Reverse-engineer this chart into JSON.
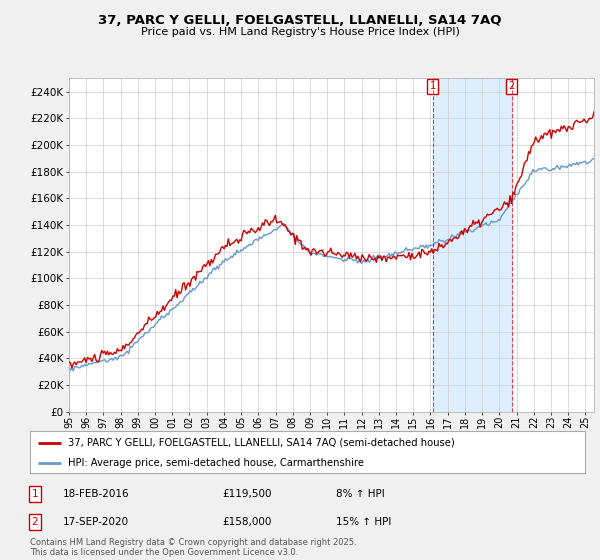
{
  "title_line1": "37, PARC Y GELLI, FOELGASTELL, LLANELLI, SA14 7AQ",
  "title_line2": "Price paid vs. HM Land Registry's House Price Index (HPI)",
  "ylim": [
    0,
    250000
  ],
  "yticks": [
    0,
    20000,
    40000,
    60000,
    80000,
    100000,
    120000,
    140000,
    160000,
    180000,
    200000,
    220000,
    240000
  ],
  "ytick_labels": [
    "£0",
    "£20K",
    "£40K",
    "£60K",
    "£80K",
    "£100K",
    "£120K",
    "£140K",
    "£160K",
    "£180K",
    "£200K",
    "£220K",
    "£240K"
  ],
  "line1_color": "#cc0000",
  "line2_color": "#6699cc",
  "shade_color": "#ddeeff",
  "vline_color": "#cc0000",
  "background_color": "#f0f0f0",
  "plot_bg_color": "#ffffff",
  "annotation1": {
    "label": "1",
    "date": "18-FEB-2016",
    "price": 119500,
    "pct": "8% ↑ HPI"
  },
  "annotation2": {
    "label": "2",
    "date": "17-SEP-2020",
    "price": 158000,
    "pct": "15% ↑ HPI"
  },
  "legend_line1": "37, PARC Y GELLI, FOELGASTELL, LLANELLI, SA14 7AQ (semi-detached house)",
  "legend_line2": "HPI: Average price, semi-detached house, Carmarthenshire",
  "footer": "Contains HM Land Registry data © Crown copyright and database right 2025.\nThis data is licensed under the Open Government Licence v3.0.",
  "x1_year": 2016.12,
  "x2_year": 2020.71,
  "xmin": 1995,
  "xmax": 2025.5
}
